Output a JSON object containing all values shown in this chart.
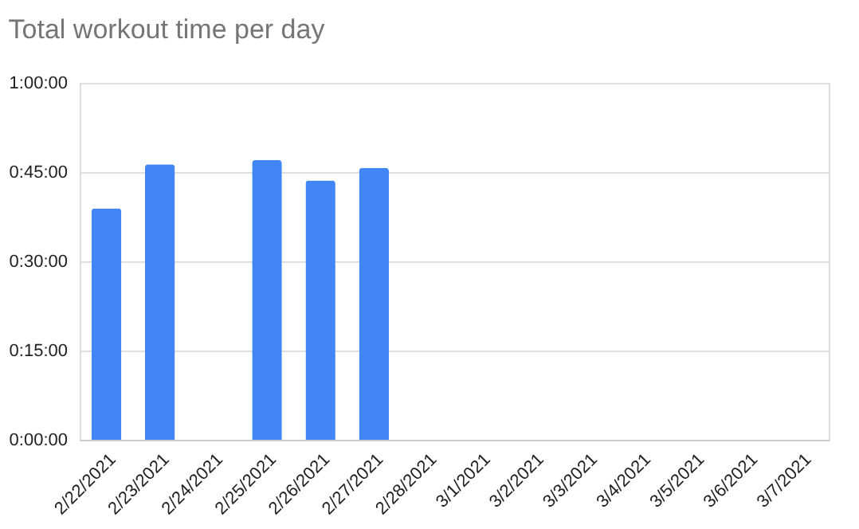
{
  "chart_data": {
    "type": "bar",
    "title": "Total workout time per day",
    "categories": [
      "2/22/2021",
      "2/23/2021",
      "2/24/2021",
      "2/25/2021",
      "2/26/2021",
      "2/27/2021",
      "2/28/2021",
      "3/1/2021",
      "3/2/2021",
      "3/3/2021",
      "3/4/2021",
      "3/5/2021",
      "3/6/2021",
      "3/7/2021"
    ],
    "values": [
      38.9,
      46.3,
      null,
      47.0,
      43.6,
      45.7,
      null,
      null,
      null,
      null,
      null,
      null,
      null,
      null
    ],
    "color": "#4285f4",
    "ylim": [
      0,
      60
    ],
    "yticks": [
      {
        "value": 0,
        "label": "0:00:00"
      },
      {
        "value": 15,
        "label": "0:15:00"
      },
      {
        "value": 30,
        "label": "0:30:00"
      },
      {
        "value": 45,
        "label": "0:45:00"
      },
      {
        "value": 60,
        "label": "1:00:00"
      }
    ],
    "grid": "y"
  }
}
